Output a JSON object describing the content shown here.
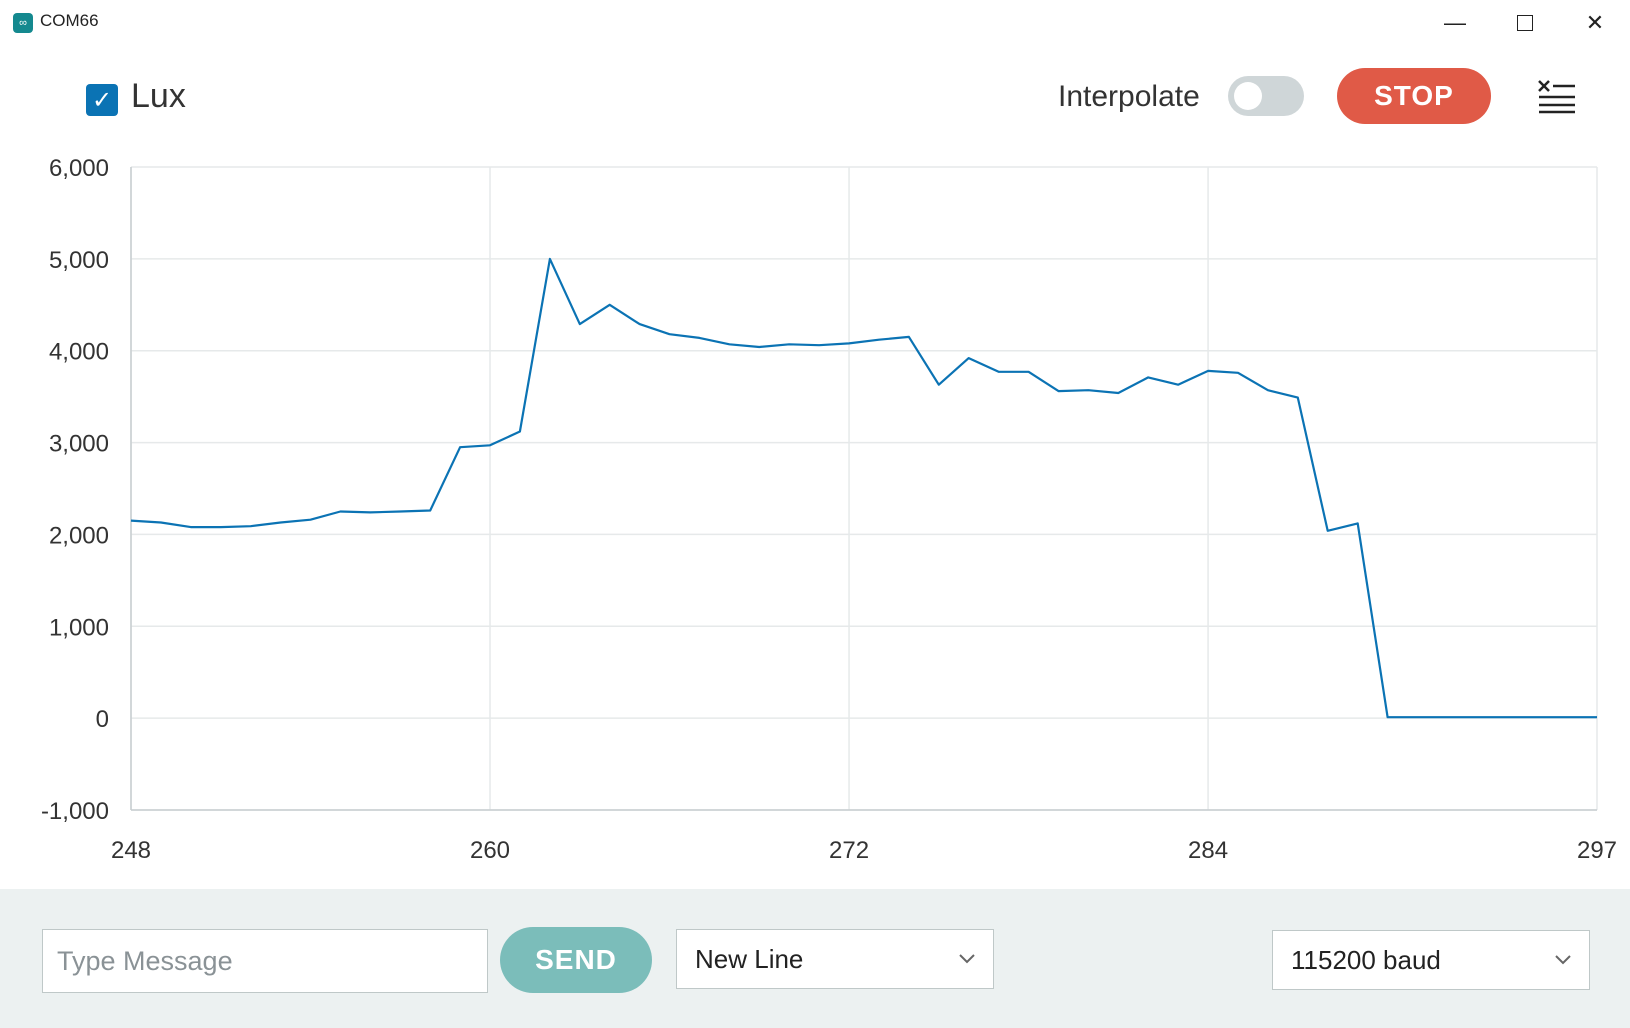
{
  "window": {
    "title": "COM66",
    "icon": "infinity-icon"
  },
  "toolbar": {
    "series_label": "Lux",
    "series_checked": true,
    "interpolate_label": "Interpolate",
    "interpolate_on": false,
    "stop_label": "STOP",
    "clear_icon": "clear-list-icon"
  },
  "footer": {
    "message_placeholder": "Type Message",
    "message_value": "",
    "send_label": "SEND",
    "line_ending": "New Line",
    "baud_rate": "115200 baud"
  },
  "colors": {
    "line": "#0b73b4",
    "stop": "#e05a47",
    "send": "#7bbdba",
    "footer_bg": "#ecf1f1"
  },
  "chart_data": {
    "type": "line",
    "xlabel": "",
    "ylabel": "",
    "xlim": [
      248,
      297
    ],
    "ylim": [
      -1000,
      6000
    ],
    "x_ticks": [
      248,
      260,
      272,
      284,
      297
    ],
    "x_tick_labels": [
      "248",
      "260",
      "272",
      "284",
      "297"
    ],
    "y_ticks": [
      -1000,
      0,
      1000,
      2000,
      3000,
      4000,
      5000,
      6000
    ],
    "y_tick_labels": [
      "-1,000",
      "0",
      "1,000",
      "2,000",
      "3,000",
      "4,000",
      "5,000",
      "6,000"
    ],
    "grid": true,
    "series": [
      {
        "name": "Lux",
        "x": [
          248,
          249,
          250,
          251,
          252,
          253,
          254,
          255,
          256,
          257,
          258,
          259,
          260,
          261,
          262,
          263,
          264,
          265,
          266,
          267,
          268,
          269,
          270,
          271,
          272,
          273,
          274,
          275,
          276,
          277,
          278,
          279,
          280,
          281,
          282,
          283,
          284,
          285,
          286,
          287,
          288,
          289,
          290,
          291,
          292,
          293,
          294,
          295,
          296,
          297
        ],
        "values": [
          2150,
          2130,
          2080,
          2080,
          2090,
          2130,
          2160,
          2250,
          2240,
          2250,
          2260,
          2950,
          2970,
          3120,
          5000,
          4290,
          4500,
          4290,
          4180,
          4140,
          4070,
          4040,
          4070,
          4060,
          4080,
          4120,
          4150,
          3630,
          3920,
          3770,
          3770,
          3560,
          3570,
          3540,
          3710,
          3630,
          3780,
          3760,
          3570,
          3490,
          2040,
          2120,
          10,
          10,
          10,
          10,
          10,
          10,
          10,
          10
        ]
      }
    ]
  }
}
